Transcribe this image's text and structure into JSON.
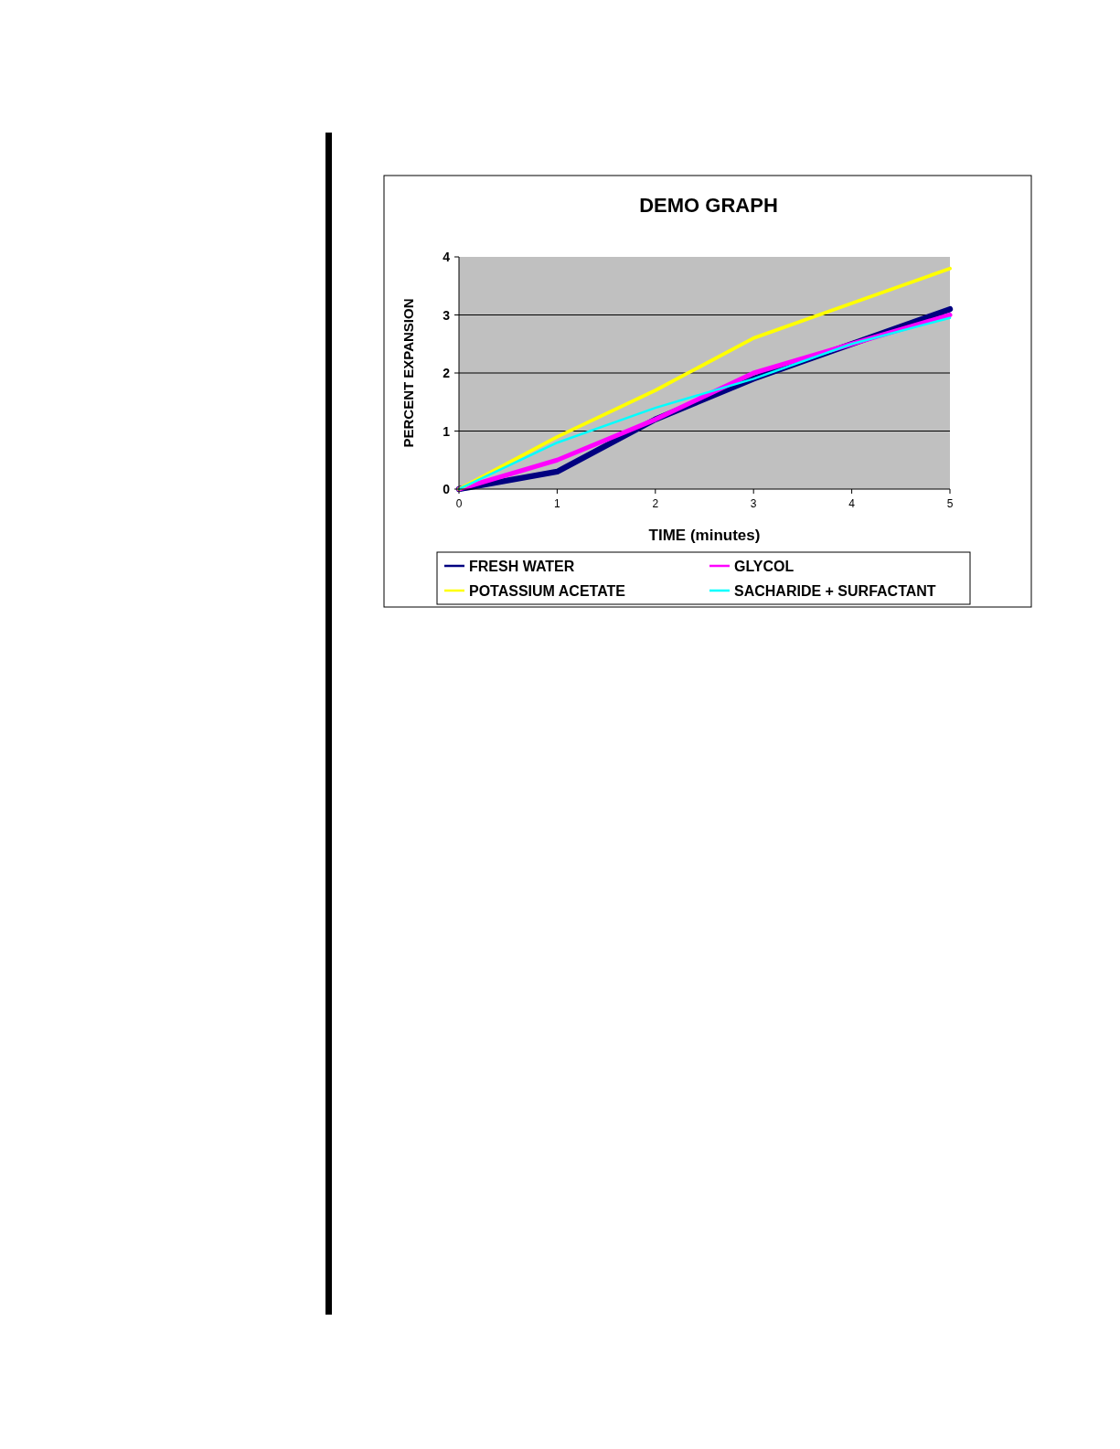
{
  "chart_data": {
    "type": "line",
    "title": "DEMO GRAPH",
    "xlabel": "TIME (minutes)",
    "ylabel": "PERCENT EXPANSION",
    "x": [
      0,
      1,
      2,
      3,
      4,
      5
    ],
    "xlim": [
      0,
      5
    ],
    "xticks": [
      0,
      1,
      2,
      3,
      4,
      5
    ],
    "ylim": [
      0,
      4
    ],
    "yticks": [
      0,
      1,
      2,
      3,
      4
    ],
    "grid": "y",
    "legend": "bottom",
    "marker": "none",
    "series": [
      {
        "name": "FRESH WATER",
        "color": "#000080",
        "values": [
          0,
          0.3,
          1.2,
          1.9,
          2.5,
          3.1
        ]
      },
      {
        "name": "GLYCOL",
        "color": "#ff00ff",
        "values": [
          0,
          0.5,
          1.2,
          2.0,
          2.5,
          3.0
        ]
      },
      {
        "name": "POTASSIUM ACETATE",
        "color": "#ffff00",
        "values": [
          0,
          0.9,
          1.7,
          2.6,
          3.2,
          3.8
        ]
      },
      {
        "name": "SACHARIDE + SURFACTANT",
        "color": "#00ffff",
        "values": [
          0,
          0.8,
          1.4,
          1.9,
          2.5,
          2.95
        ]
      }
    ]
  }
}
